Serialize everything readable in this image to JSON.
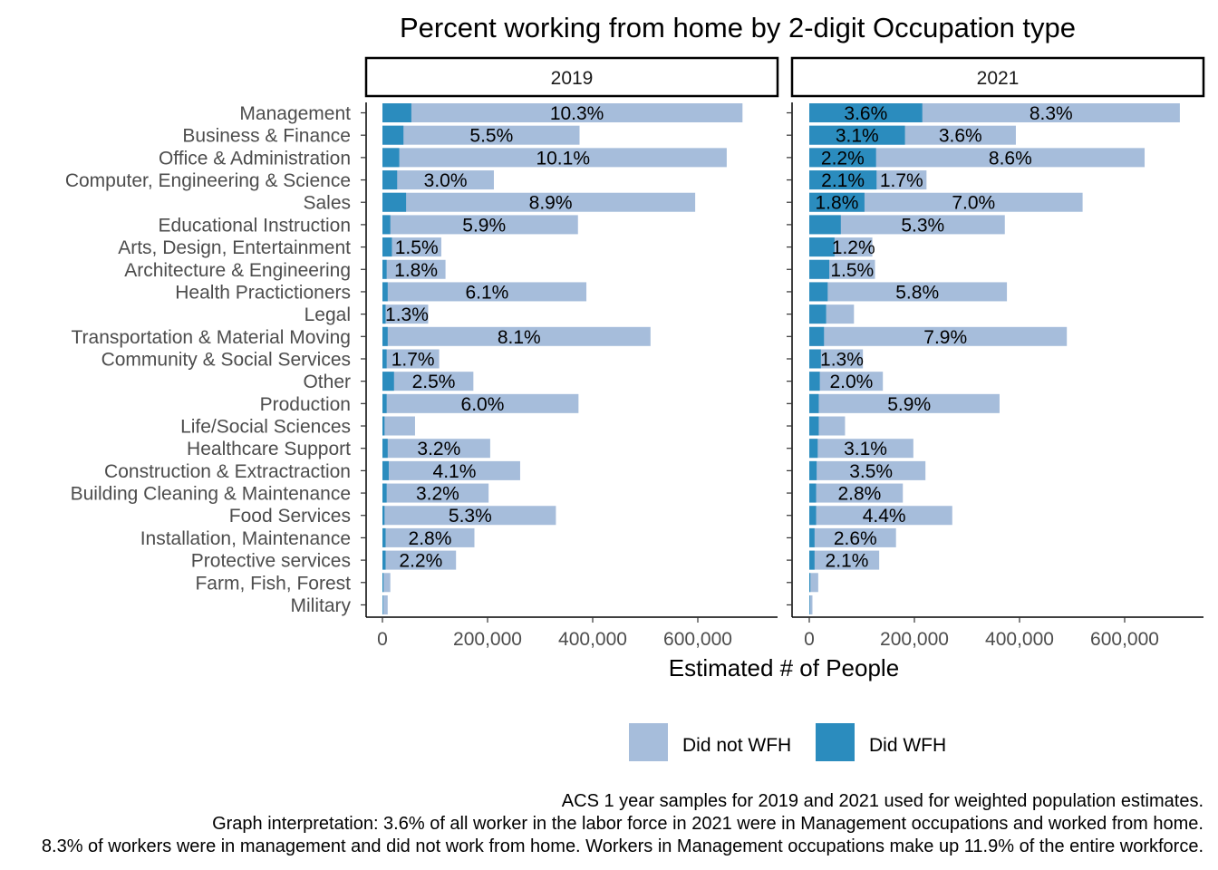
{
  "chart_data": {
    "type": "bar",
    "orientation": "horizontal",
    "stacked": true,
    "title": "Percent working from home by 2-digit Occupation type",
    "xlabel": "Estimated # of People",
    "ylabel": "",
    "xlim": [
      0,
      720000
    ],
    "x_ticks": [
      "0",
      "200,000",
      "400,000",
      "600,000"
    ],
    "x_tick_values": [
      0,
      200000,
      400000,
      600000
    ],
    "grid": false,
    "legend_position": "bottom",
    "legend": [
      {
        "name": "Did not WFH",
        "color": "#a6bddb"
      },
      {
        "name": "Did WFH",
        "color": "#2b8cbe"
      }
    ],
    "categories": [
      "Management",
      "Business & Finance",
      "Office & Administration",
      "Computer, Engineering & Science",
      "Sales",
      "Educational Instruction",
      "Arts, Design, Entertainment",
      "Architecture & Engineering",
      "Health Practictioners",
      "Legal",
      "Transportation & Material Moving",
      "Community & Social Services",
      "Other",
      "Production",
      "Life/Social Sciences",
      "Healthcare Support",
      "Construction & Extractraction",
      "Building Cleaning & Maintenance",
      "Food Services",
      "Installation, Maintenance",
      "Protective services",
      "Farm, Fish, Forest",
      "Military"
    ],
    "panels": [
      {
        "name": "2019",
        "wfh": [
          55000,
          40000,
          32000,
          28000,
          45000,
          15000,
          18000,
          8000,
          10000,
          6000,
          10000,
          8000,
          22000,
          8000,
          4000,
          10000,
          12000,
          8000,
          4000,
          6000,
          6000,
          2000,
          1000
        ],
        "total": [
          685000,
          375000,
          655000,
          212000,
          595000,
          372000,
          112000,
          120000,
          388000,
          87000,
          510000,
          108000,
          173000,
          373000,
          62000,
          205000,
          262000,
          202000,
          330000,
          175000,
          140000,
          15000,
          10000
        ],
        "did_not_wfh_labels": [
          "10.3%",
          "5.5%",
          "10.1%",
          "3.0%",
          "8.9%",
          "5.9%",
          "1.5%",
          "1.8%",
          "6.1%",
          "1.3%",
          "8.1%",
          "1.7%",
          "2.5%",
          "6.0%",
          "",
          "3.2%",
          "4.1%",
          "3.2%",
          "5.3%",
          "2.8%",
          "2.2%",
          "",
          ""
        ],
        "wfh_labels": [
          "",
          "",
          "",
          "",
          "",
          "",
          "",
          "",
          "",
          "",
          "",
          "",
          "",
          "",
          "",
          "",
          "",
          "",
          "",
          "",
          "",
          "",
          ""
        ]
      },
      {
        "name": "2021",
        "wfh": [
          215000,
          182000,
          127000,
          128000,
          105000,
          60000,
          48000,
          38000,
          35000,
          32000,
          28000,
          22000,
          20000,
          18000,
          18000,
          16000,
          14000,
          13000,
          13000,
          10000,
          10000,
          2000,
          1000
        ],
        "total": [
          705000,
          393000,
          638000,
          223000,
          520000,
          372000,
          120000,
          125000,
          376000,
          85000,
          490000,
          102000,
          140000,
          362000,
          68000,
          198000,
          221000,
          178000,
          272000,
          165000,
          133000,
          17000,
          6000
        ],
        "did_not_wfh_labels": [
          "8.3%",
          "3.6%",
          "8.6%",
          "1.7%",
          "7.0%",
          "5.3%",
          "1.2%",
          "1.5%",
          "5.8%",
          "",
          "7.9%",
          "1.3%",
          "2.0%",
          "5.9%",
          "",
          "3.1%",
          "3.5%",
          "2.8%",
          "4.4%",
          "2.6%",
          "2.1%",
          "",
          ""
        ],
        "wfh_labels": [
          "3.6%",
          "3.1%",
          "2.2%",
          "2.1%",
          "1.8%",
          "",
          "",
          "",
          "",
          "",
          "",
          "",
          "",
          "",
          "",
          "",
          "",
          "",
          "",
          "",
          "",
          "",
          ""
        ]
      }
    ]
  },
  "caption_lines": [
    "ACS 1 year samples for 2019 and 2021 used for weighted population estimates.",
    "Graph interpretation: 3.6% of all worker in the labor force in 2021 were in Management occupations and worked from home.",
    "8.3% of workers were in management and did not work from home. Workers in Management occupations make up 11.9% of the entire workforce."
  ]
}
